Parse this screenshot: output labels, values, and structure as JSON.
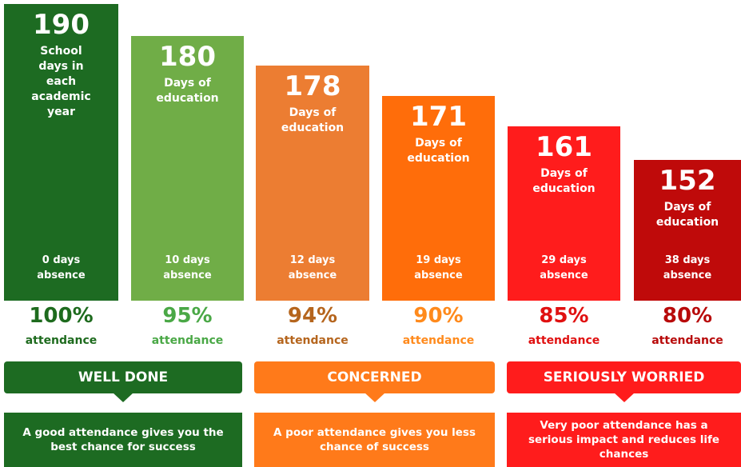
{
  "columns": [
    {
      "days": 190,
      "label": "School days in each academic year",
      "absence": "0 days absence",
      "attendance": "100%",
      "attendance_label": "attendance"
    },
    {
      "days": 180,
      "label": "Days of education",
      "absence": "10 days absence",
      "attendance": "95%",
      "attendance_label": "attendance"
    },
    {
      "days": 178,
      "label": "Days of education",
      "absence": "12 days absence",
      "attendance": "94%",
      "attendance_label": "attendance"
    },
    {
      "days": 171,
      "label": "Days of education",
      "absence": "19 days absence",
      "attendance": "90%",
      "attendance_label": "attendance"
    },
    {
      "days": 161,
      "label": "Days of education",
      "absence": "29 days absence",
      "attendance": "85%",
      "attendance_label": "attendance"
    },
    {
      "days": 152,
      "label": "Days of education",
      "absence": "38 days absence",
      "attendance": "80%",
      "attendance_label": "attendance"
    }
  ],
  "bands": [
    {
      "title": "WELL DONE",
      "text": "A good attendance gives you the best chance for success"
    },
    {
      "title": "CONCERNED",
      "text": "A poor attendance gives you less chance of success"
    },
    {
      "title": "SERIOUSLY WORRIED",
      "text": "Very poor attendance has a serious impact and reduces life chances"
    }
  ]
}
